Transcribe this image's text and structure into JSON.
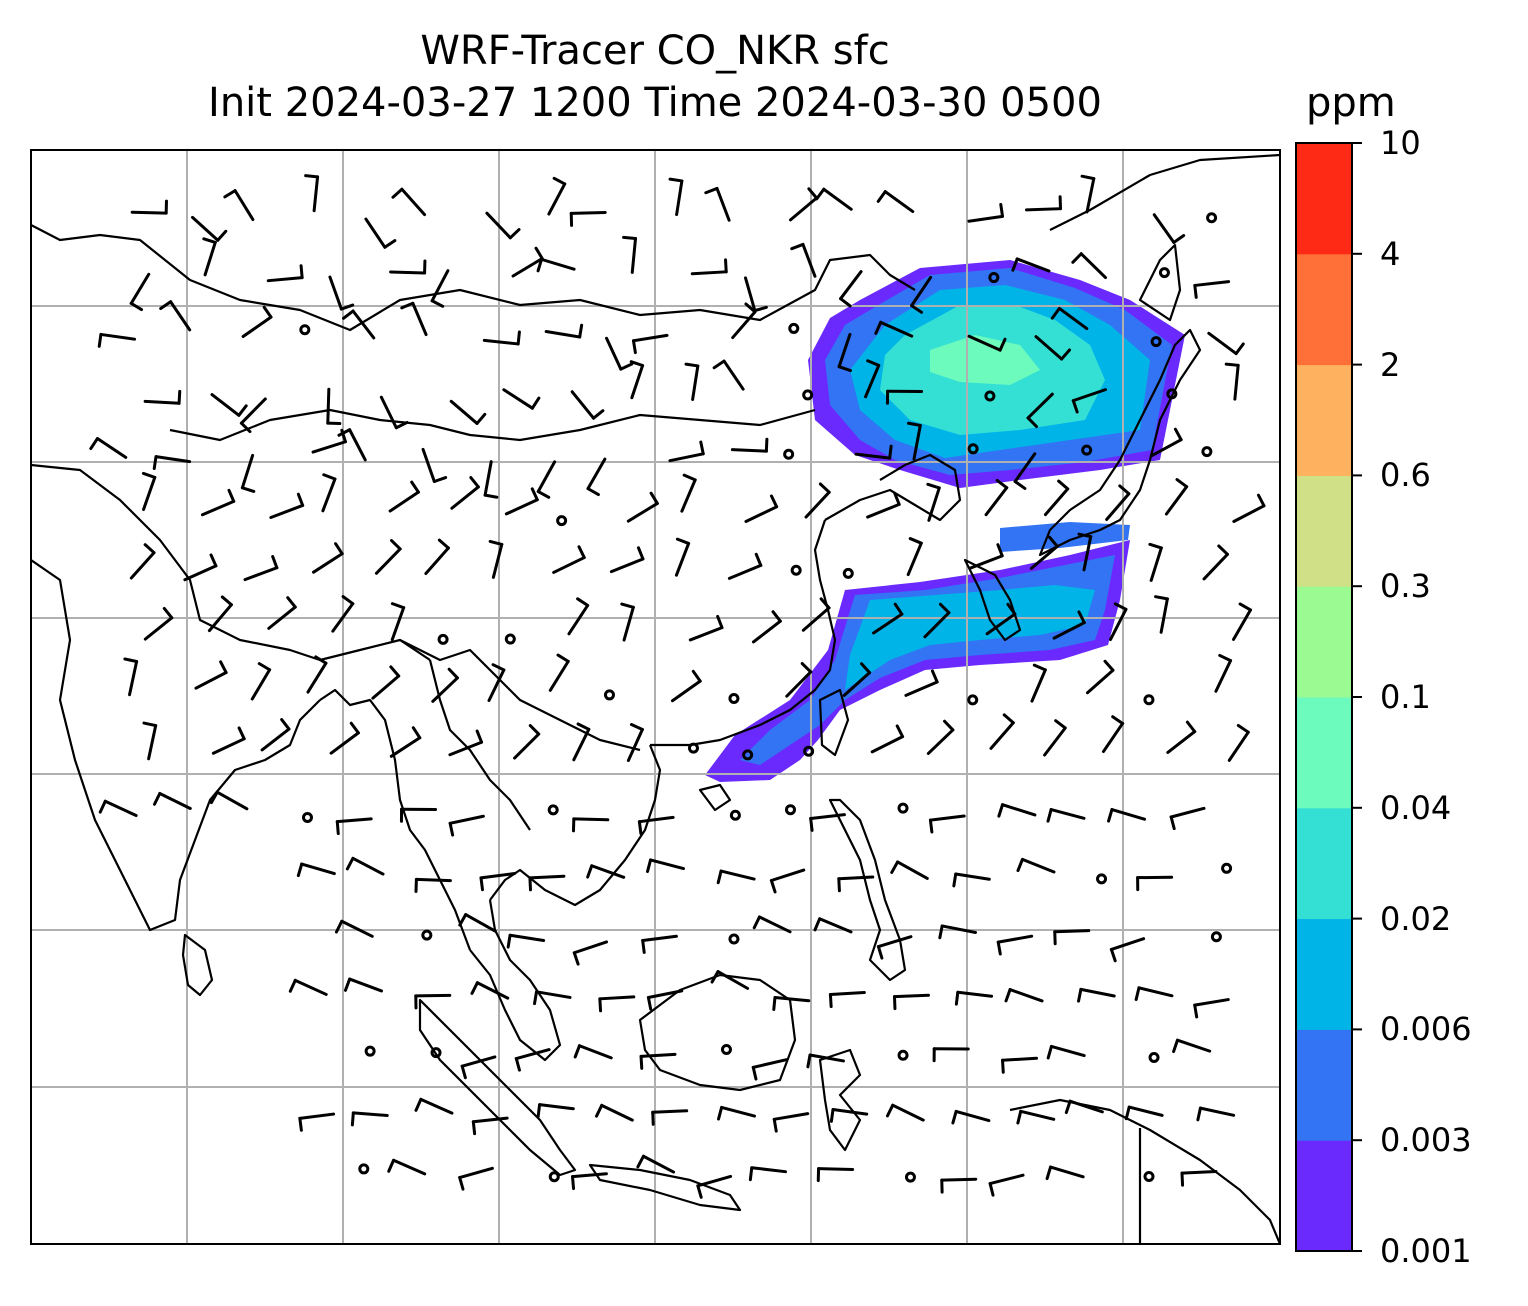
{
  "title": {
    "line1": "WRF-Tracer CO_NKR sfc",
    "line2": "Init 2024-03-27 1200 Time 2024-03-30 0500"
  },
  "colorbar": {
    "unit": "ppm",
    "levels": [
      "0.001",
      "0.003",
      "0.006",
      "0.02",
      "0.04",
      "0.1",
      "0.3",
      "0.6",
      "2",
      "4",
      "10"
    ],
    "colors": [
      "#6a2afe",
      "#3274f3",
      "#00b4e8",
      "#34e0d4",
      "#6dfbbd",
      "#9bfb92",
      "#cfe086",
      "#feb15e",
      "#ff7038",
      "#fe2a15"
    ]
  },
  "map": {
    "gridlines": true,
    "plume_colors": {
      "outer": "#6a2afe",
      "low": "#3274f3",
      "mid": "#00b4e8",
      "high": "#34e0d4",
      "peak": "#6dfbbd"
    },
    "wind_symbols": "barbs"
  }
}
